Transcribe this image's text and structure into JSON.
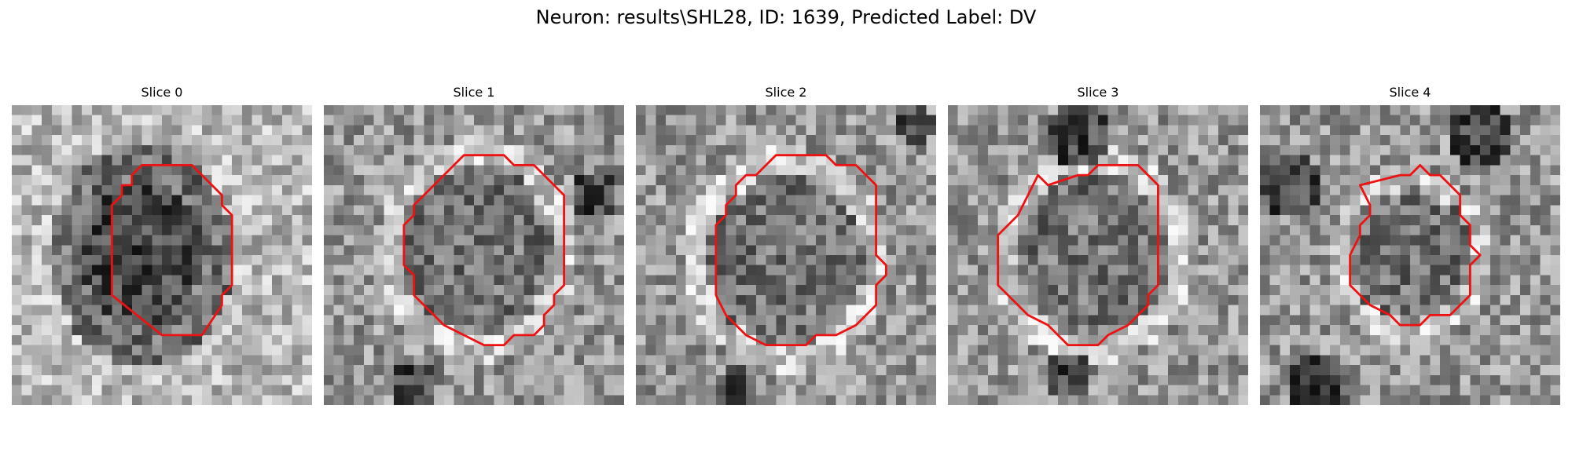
{
  "figure": {
    "title": "Neuron: results\\SHL28, ID: 1639, Predicted Label: DV",
    "outline_color": "#ee1111"
  },
  "slices": [
    {
      "title": "Slice 0"
    },
    {
      "title": "Slice 1"
    },
    {
      "title": "Slice 2"
    },
    {
      "title": "Slice 3"
    },
    {
      "title": "Slice 4"
    }
  ]
}
